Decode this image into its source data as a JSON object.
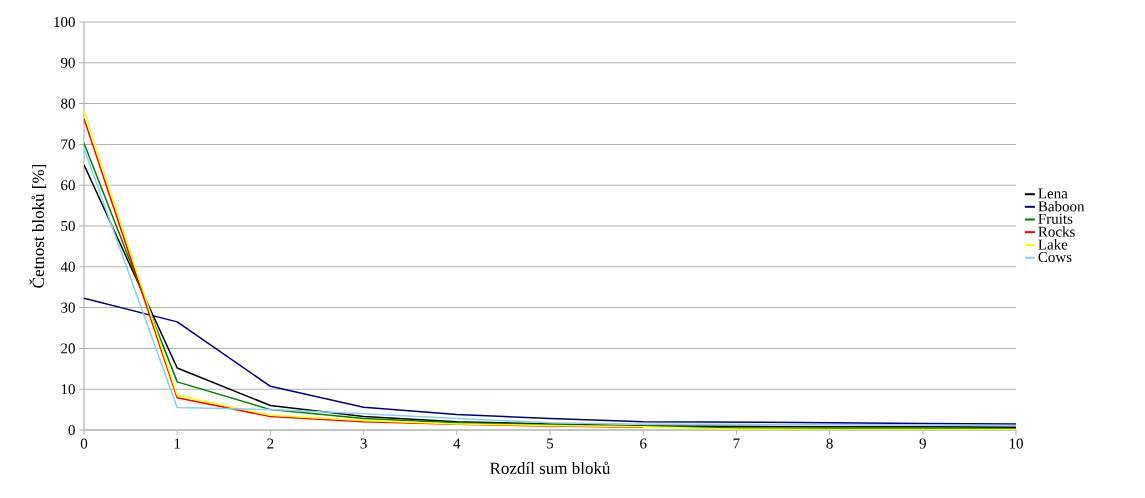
{
  "chart_data": {
    "type": "line",
    "xlabel": "Rozdíl sum bloků",
    "ylabel": "Četnost bloků [%]",
    "x": [
      0,
      1,
      2,
      3,
      4,
      5,
      6,
      7,
      8,
      9,
      10
    ],
    "series": [
      {
        "name": "Lena",
        "color": "#000000",
        "values": [
          65,
          15.2,
          6,
          3.3,
          2,
          1.5,
          1,
          0.9,
          0.8,
          0.8,
          0.7
        ]
      },
      {
        "name": "Baboon",
        "color": "#000080",
        "values": [
          32.3,
          26.5,
          10.7,
          5.6,
          3.8,
          2.8,
          2,
          1.9,
          1.8,
          1.6,
          1.5
        ]
      },
      {
        "name": "Fruits",
        "color": "#008000",
        "values": [
          70.3,
          11.8,
          5,
          2.8,
          1.8,
          1.3,
          0.9,
          0.5,
          0.4,
          0.4,
          0.3
        ]
      },
      {
        "name": "Rocks",
        "color": "#ff0000",
        "values": [
          76.3,
          7.9,
          3.3,
          2,
          1.4,
          1,
          0.7,
          null,
          null,
          null,
          null
        ]
      },
      {
        "name": "Lake",
        "color": "#ffff00",
        "values": [
          78.5,
          8.5,
          3.6,
          2.3,
          1.5,
          1.1,
          0.8,
          0.2,
          0.1,
          0.1,
          0.1
        ]
      },
      {
        "name": "Cows",
        "color": "#87cefa",
        "values": [
          69,
          5.5,
          5,
          4,
          2.8,
          1.8,
          1.4,
          1.4,
          1.3,
          1.2,
          1.1
        ]
      }
    ],
    "xlim": [
      0,
      10
    ],
    "xticks": [
      0,
      1,
      2,
      3,
      4,
      5,
      6,
      7,
      8,
      9,
      10
    ],
    "ylim": [
      0,
      100
    ],
    "yticks": [
      0,
      10,
      20,
      30,
      40,
      50,
      60,
      70,
      80,
      90,
      100
    ],
    "grid": "y",
    "legend": "right",
    "marker": "none",
    "line_style": "solid"
  }
}
